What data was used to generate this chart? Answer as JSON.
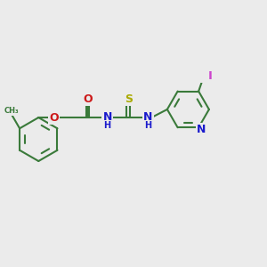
{
  "background_color": "#ebebeb",
  "atom_colors": {
    "C": "#3a7a3a",
    "N": "#1a1acc",
    "O": "#cc1a1a",
    "S": "#aaaa00",
    "I": "#cc44cc",
    "H": "#1a1acc"
  },
  "bond_color": "#3a7a3a",
  "bond_width": 1.5,
  "aromatic_inner_scale": 0.72
}
